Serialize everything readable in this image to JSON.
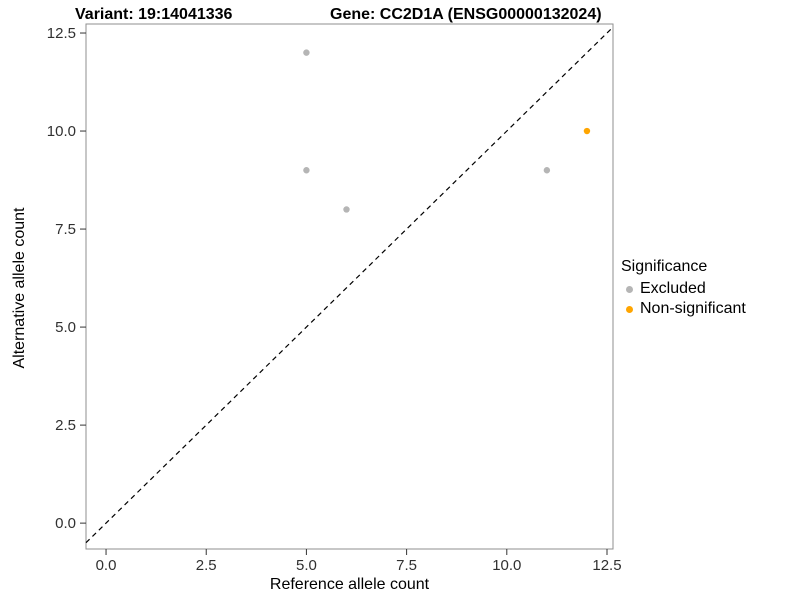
{
  "chart_data": {
    "type": "scatter",
    "title_left": "Variant: 19:14041336",
    "title_right": "Gene: CC2D1A (ENSG00000132024)",
    "xlabel": "Reference allele count",
    "ylabel": "Alternative allele count",
    "xlim": [
      -0.5,
      12.65
    ],
    "ylim": [
      -0.66,
      12.73
    ],
    "xticks": {
      "values": [
        0,
        2.5,
        5,
        7.5,
        10,
        12.5
      ],
      "labels": [
        "0.0",
        "2.5",
        "5.0",
        "7.5",
        "10.0",
        "12.5"
      ]
    },
    "yticks": {
      "values": [
        0,
        2.5,
        5,
        7.5,
        10,
        12.5
      ],
      "labels": [
        "0.0",
        "2.5",
        "5.0",
        "7.5",
        "10.0",
        "12.5"
      ]
    },
    "grid": false,
    "panel_border_color": "#8f8f8f",
    "identity_line": {
      "style": "dashed",
      "color": "#000000",
      "from": "y = x"
    },
    "legend": {
      "title": "Significance",
      "position": "right",
      "entries": [
        {
          "label": "Excluded",
          "color": "#b5b5b5"
        },
        {
          "label": "Non-significant",
          "color": "#ffa500"
        }
      ]
    },
    "series": [
      {
        "name": "Excluded",
        "color": "#b5b5b5",
        "points": [
          [
            5,
            12
          ],
          [
            5,
            9
          ],
          [
            6,
            8
          ],
          [
            11,
            9
          ]
        ]
      },
      {
        "name": "Non-significant",
        "color": "#ffa500",
        "points": [
          [
            12,
            10
          ]
        ]
      }
    ]
  }
}
